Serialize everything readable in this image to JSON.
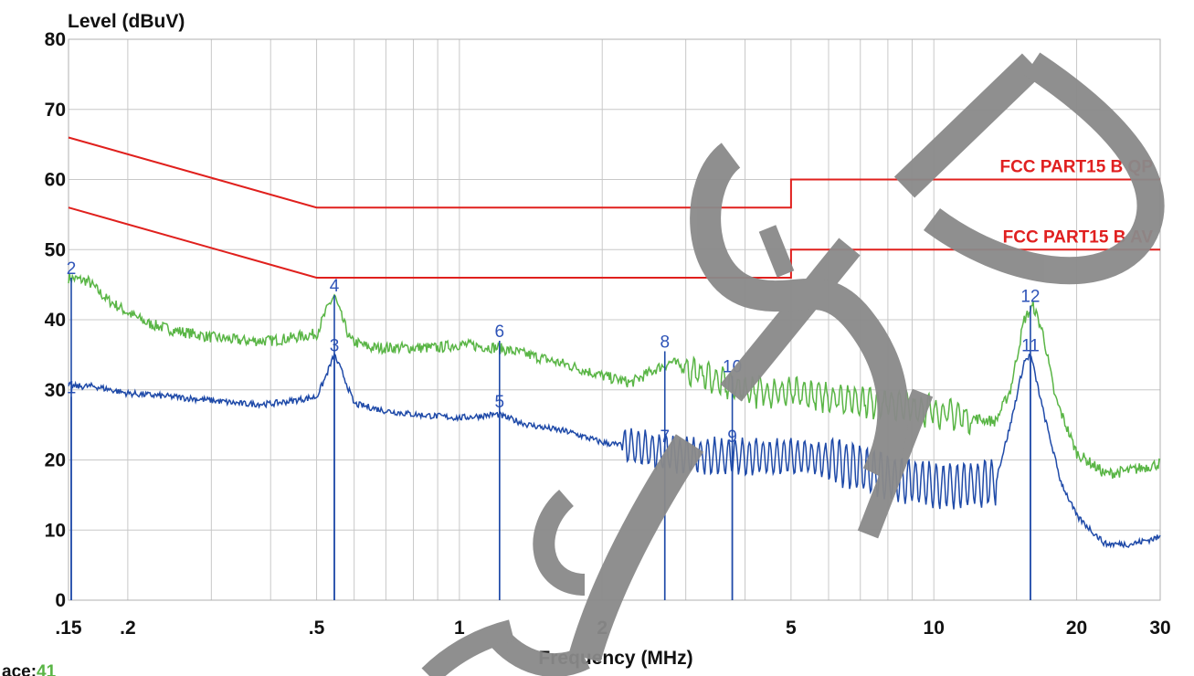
{
  "colors": {
    "qp_trace": "#59b545",
    "av_trace": "#1f4aa8",
    "limit": "#e0201d",
    "marker": "#2f54b8",
    "grid": "#c8c8c8",
    "watermark": "#8a8a8a"
  },
  "footer": {
    "trace_prefix": "ace:",
    "trace_value": "41"
  },
  "chart_data": {
    "type": "line",
    "ylabel": "Level (dBuV)",
    "xlabel": "Frequency (MHz)",
    "xscale": "log",
    "xlim": [
      0.15,
      30
    ],
    "ylim": [
      0,
      80
    ],
    "grid": true,
    "yticks": [
      {
        "value": 0,
        "label": "0"
      },
      {
        "value": 10,
        "label": "10"
      },
      {
        "value": 20,
        "label": "20"
      },
      {
        "value": 30,
        "label": "30"
      },
      {
        "value": 40,
        "label": "40"
      },
      {
        "value": 50,
        "label": "50"
      },
      {
        "value": 60,
        "label": "60"
      },
      {
        "value": 70,
        "label": "70"
      },
      {
        "value": 80,
        "label": "80"
      }
    ],
    "xticks": [
      {
        "value": 0.15,
        "label": ".15"
      },
      {
        "value": 0.2,
        "label": ".2"
      },
      {
        "value": 0.5,
        "label": ".5"
      },
      {
        "value": 1,
        "label": "1"
      },
      {
        "value": 2,
        "label": "2"
      },
      {
        "value": 5,
        "label": "5"
      },
      {
        "value": 10,
        "label": "10"
      },
      {
        "value": 20,
        "label": "20"
      },
      {
        "value": 30,
        "label": "30"
      }
    ],
    "limit_lines": [
      {
        "name": "FCC PART15 B QP",
        "points": [
          [
            0.15,
            66
          ],
          [
            0.5,
            56
          ],
          [
            5,
            56
          ],
          [
            5,
            60
          ],
          [
            30,
            60
          ]
        ]
      },
      {
        "name": "FCC PART15 B AV",
        "points": [
          [
            0.15,
            56
          ],
          [
            0.5,
            46
          ],
          [
            5,
            46
          ],
          [
            5,
            50
          ],
          [
            30,
            50
          ]
        ]
      }
    ],
    "series": [
      {
        "color": "green",
        "points": [
          [
            0.15,
            46
          ],
          [
            0.165,
            45.5
          ],
          [
            0.18,
            43
          ],
          [
            0.2,
            41
          ],
          [
            0.22,
            39.5
          ],
          [
            0.25,
            38.5
          ],
          [
            0.3,
            37.5
          ],
          [
            0.35,
            37
          ],
          [
            0.4,
            37
          ],
          [
            0.45,
            37.5
          ],
          [
            0.5,
            38
          ],
          [
            0.53,
            42
          ],
          [
            0.545,
            43.5
          ],
          [
            0.56,
            41
          ],
          [
            0.59,
            37
          ],
          [
            0.65,
            36
          ],
          [
            0.75,
            36
          ],
          [
            0.9,
            36
          ],
          [
            1.0,
            36.5
          ],
          [
            1.2,
            36
          ],
          [
            1.4,
            35
          ],
          [
            1.7,
            33.5
          ],
          [
            2.0,
            32
          ],
          [
            2.3,
            31
          ],
          [
            2.6,
            33
          ],
          [
            2.8,
            34
          ],
          [
            3.0,
            33
          ],
          [
            3.3,
            32
          ],
          [
            3.6,
            31
          ],
          [
            4.0,
            30
          ],
          [
            5.0,
            29.5
          ],
          [
            6.0,
            29
          ],
          [
            7.0,
            28.5
          ],
          [
            8.0,
            28
          ],
          [
            10.0,
            27
          ],
          [
            12.0,
            26
          ],
          [
            13.5,
            25.5
          ],
          [
            14.5,
            30
          ],
          [
            15.5,
            40
          ],
          [
            16.2,
            42
          ],
          [
            17.0,
            38
          ],
          [
            18.0,
            29
          ],
          [
            20.0,
            21
          ],
          [
            23.0,
            18
          ],
          [
            26.0,
            18.5
          ],
          [
            30.0,
            19.5
          ]
        ]
      },
      {
        "color": "blue",
        "points": [
          [
            0.15,
            30.5
          ],
          [
            0.17,
            30.5
          ],
          [
            0.2,
            29.5
          ],
          [
            0.25,
            29
          ],
          [
            0.3,
            28.5
          ],
          [
            0.35,
            28
          ],
          [
            0.4,
            28
          ],
          [
            0.45,
            28.5
          ],
          [
            0.5,
            29
          ],
          [
            0.52,
            31.5
          ],
          [
            0.545,
            35
          ],
          [
            0.57,
            32
          ],
          [
            0.6,
            28
          ],
          [
            0.7,
            27
          ],
          [
            0.8,
            26.5
          ],
          [
            1.0,
            26
          ],
          [
            1.2,
            26.5
          ],
          [
            1.4,
            25
          ],
          [
            1.7,
            24
          ],
          [
            2.0,
            22.5
          ],
          [
            2.5,
            21.5
          ],
          [
            3.0,
            20.5
          ],
          [
            4.0,
            20.5
          ],
          [
            5.0,
            20.5
          ],
          [
            6.0,
            20
          ],
          [
            7.0,
            19
          ],
          [
            8.0,
            17.5
          ],
          [
            10.0,
            16.5
          ],
          [
            12.0,
            16.5
          ],
          [
            13.5,
            17
          ],
          [
            14.5,
            25
          ],
          [
            15.5,
            34
          ],
          [
            16.0,
            35
          ],
          [
            17.0,
            27
          ],
          [
            18.5,
            17
          ],
          [
            20.0,
            12
          ],
          [
            23.0,
            8
          ],
          [
            26.0,
            8
          ],
          [
            30.0,
            9
          ]
        ]
      }
    ],
    "markers": [
      {
        "label": "1",
        "freq": 0.152,
        "level": 29
      },
      {
        "label": "2",
        "freq": 0.152,
        "level": 46
      },
      {
        "label": "3",
        "freq": 0.545,
        "level": 35
      },
      {
        "label": "4",
        "freq": 0.545,
        "level": 43.5
      },
      {
        "label": "5",
        "freq": 1.215,
        "level": 27
      },
      {
        "label": "6",
        "freq": 1.215,
        "level": 37
      },
      {
        "label": "7",
        "freq": 2.71,
        "level": 22
      },
      {
        "label": "8",
        "freq": 2.71,
        "level": 35.5
      },
      {
        "label": "9",
        "freq": 3.76,
        "level": 22
      },
      {
        "label": "10",
        "freq": 3.76,
        "level": 32
      },
      {
        "label": "11",
        "freq": 15.98,
        "level": 35
      },
      {
        "label": "12",
        "freq": 15.98,
        "level": 42
      }
    ]
  }
}
